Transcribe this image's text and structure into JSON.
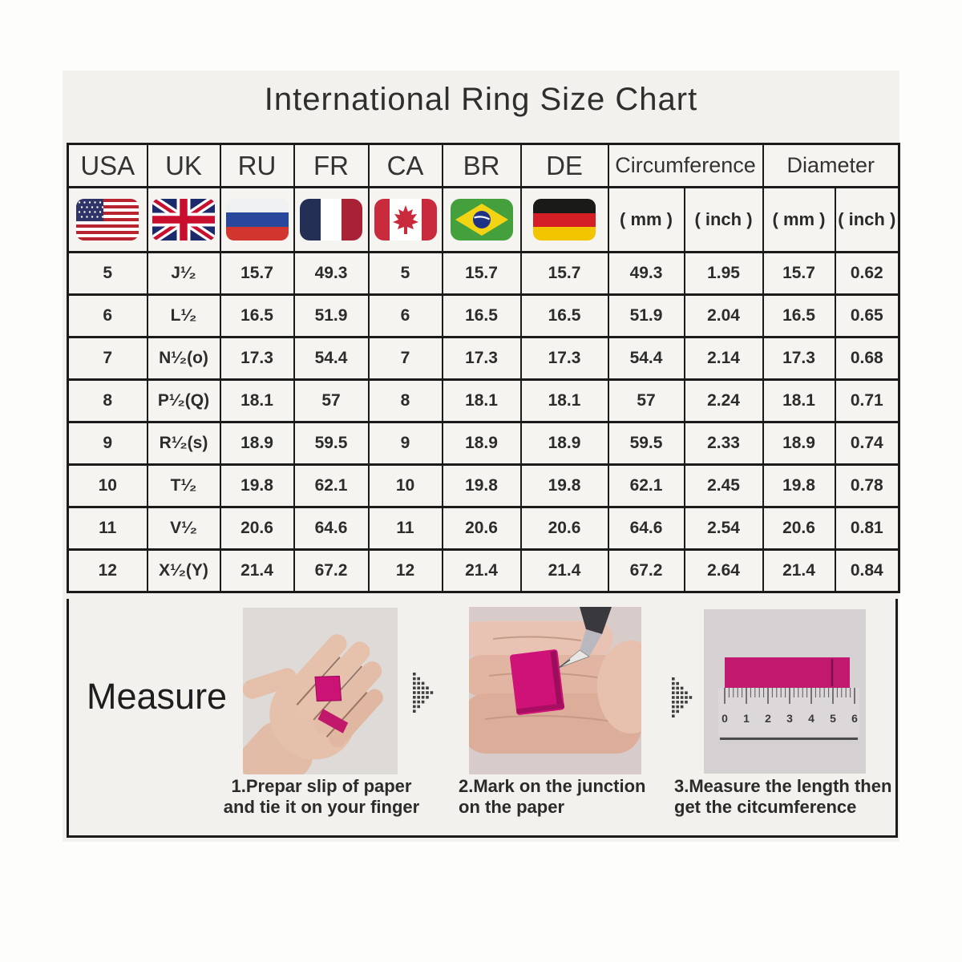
{
  "title": "International Ring Size Chart",
  "chart_data": {
    "type": "table",
    "title": "International Ring Size Chart",
    "country_columns": [
      "USA",
      "UK",
      "RU",
      "FR",
      "CA",
      "BR",
      "DE"
    ],
    "column_groups": [
      {
        "label": "Circumference",
        "sub": [
          "( mm )",
          "( inch )"
        ]
      },
      {
        "label": "Diameter",
        "sub": [
          "( mm )",
          "( inch )"
        ]
      }
    ],
    "flags": [
      "usa-flag",
      "uk-flag",
      "russia-flag",
      "france-flag",
      "canada-flag",
      "brazil-flag",
      "germany-flag"
    ],
    "rows": [
      [
        "5",
        "J¹⁄₂",
        "15.7",
        "49.3",
        "5",
        "15.7",
        "15.7",
        "49.3",
        "1.95",
        "15.7",
        "0.62"
      ],
      [
        "6",
        "L¹⁄₂",
        "16.5",
        "51.9",
        "6",
        "16.5",
        "16.5",
        "51.9",
        "2.04",
        "16.5",
        "0.65"
      ],
      [
        "7",
        "N¹⁄₂(o)",
        "17.3",
        "54.4",
        "7",
        "17.3",
        "17.3",
        "54.4",
        "2.14",
        "17.3",
        "0.68"
      ],
      [
        "8",
        "P¹⁄₂(Q)",
        "18.1",
        "57",
        "8",
        "18.1",
        "18.1",
        "57",
        "2.24",
        "18.1",
        "0.71"
      ],
      [
        "9",
        "R¹⁄₂(s)",
        "18.9",
        "59.5",
        "9",
        "18.9",
        "18.9",
        "59.5",
        "2.33",
        "18.9",
        "0.74"
      ],
      [
        "10",
        "T¹⁄₂",
        "19.8",
        "62.1",
        "10",
        "19.8",
        "19.8",
        "62.1",
        "2.45",
        "19.8",
        "0.78"
      ],
      [
        "11",
        "V¹⁄₂",
        "20.6",
        "64.6",
        "11",
        "20.6",
        "20.6",
        "64.6",
        "2.54",
        "20.6",
        "0.81"
      ],
      [
        "12",
        "X¹⁄₂(Y)",
        "21.4",
        "67.2",
        "12",
        "21.4",
        "21.4",
        "67.2",
        "2.64",
        "21.4",
        "0.84"
      ]
    ]
  },
  "measure": {
    "label": "Measure",
    "steps": [
      {
        "line1": "1.Prepar slip of paper",
        "line2": "and tie it on your finger",
        "illustration": "hand-with-paper-strip"
      },
      {
        "line1": "2.Mark on the junction",
        "line2": "on the paper",
        "illustration": "pen-marking-junction"
      },
      {
        "line1": "3.Measure the length then",
        "line2": "get the citcumference",
        "illustration": "ruler-measuring-strip"
      }
    ],
    "ruler_numbers": [
      "0",
      "1",
      "2",
      "3",
      "4",
      "5",
      "6"
    ]
  },
  "colors": {
    "accent_magenta": "#cc1377",
    "border_black": "#1b1b1b",
    "panel_background": "#f3f1ee"
  }
}
